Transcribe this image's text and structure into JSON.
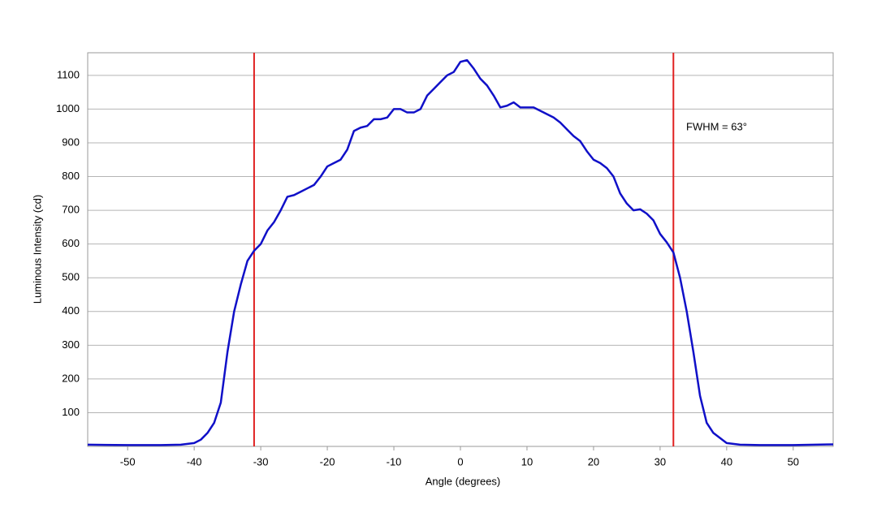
{
  "chart_data": {
    "type": "line",
    "x_label": "Angle (degrees)",
    "y_label": "Luminous Intensity (cd)",
    "annotation": "FWHM = 63°",
    "x": [
      -56,
      -50,
      -45,
      -42,
      -40,
      -39,
      -38,
      -37,
      -36,
      -35,
      -34,
      -33,
      -32,
      -31,
      -30,
      -29,
      -28,
      -27,
      -26,
      -25,
      -24,
      -23,
      -22,
      -21,
      -20,
      -19,
      -18,
      -17,
      -16,
      -15,
      -14,
      -13,
      -12,
      -11,
      -10,
      -9,
      -8,
      -7,
      -6,
      -5,
      -4,
      -3,
      -2,
      -1,
      0,
      1,
      2,
      3,
      4,
      5,
      6,
      7,
      8,
      9,
      10,
      11,
      12,
      13,
      14,
      15,
      16,
      17,
      18,
      19,
      20,
      21,
      22,
      23,
      24,
      25,
      26,
      27,
      28,
      29,
      30,
      31,
      32,
      33,
      34,
      35,
      36,
      37,
      38,
      39,
      40,
      42,
      45,
      50,
      56
    ],
    "series": [
      {
        "name": "Luminous Intensity",
        "color": "#1010c8",
        "values": [
          5,
          4,
          4,
          5,
          10,
          20,
          40,
          70,
          130,
          280,
          400,
          480,
          550,
          580,
          600,
          640,
          665,
          700,
          740,
          745,
          755,
          765,
          775,
          800,
          830,
          840,
          850,
          880,
          935,
          945,
          950,
          970,
          970,
          975,
          1000,
          1000,
          990,
          990,
          1000,
          1040,
          1060,
          1080,
          1100,
          1110,
          1140,
          1145,
          1120,
          1090,
          1070,
          1040,
          1005,
          1010,
          1020,
          1005,
          1005,
          1005,
          995,
          985,
          975,
          960,
          940,
          920,
          905,
          875,
          850,
          840,
          825,
          800,
          750,
          720,
          700,
          703,
          690,
          670,
          630,
          605,
          575,
          500,
          400,
          280,
          150,
          70,
          40,
          25,
          10,
          5,
          4,
          4,
          6
        ]
      }
    ],
    "vlines": [
      -31,
      32
    ],
    "vline_color": "#e02020",
    "xlim": [
      -56,
      56
    ],
    "xticks": [
      -50,
      -40,
      -30,
      -20,
      -10,
      0,
      10,
      20,
      30,
      40,
      50
    ],
    "ylim": [
      0,
      1167
    ],
    "yticks": [
      100,
      200,
      300,
      400,
      500,
      600,
      700,
      800,
      900,
      1000,
      1100
    ],
    "grid": true
  }
}
